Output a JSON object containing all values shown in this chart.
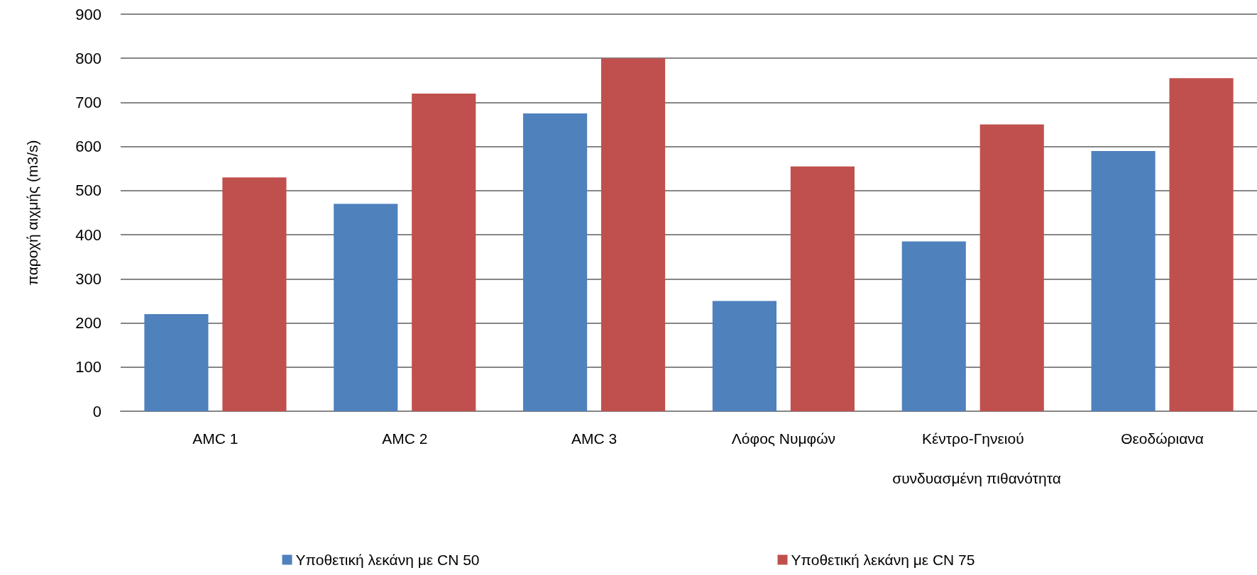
{
  "chart_data": {
    "type": "bar",
    "ylabel": "παροχή αιχμής (m3/s)",
    "categories": [
      "AMC 1",
      "AMC 2",
      "AMC 3",
      "Λόφος Νυμφών",
      "Κέντρο-Γηνειού",
      "Θεοδώριανα"
    ],
    "series": [
      {
        "name": "Υποθετική λεκάνη με CN 50",
        "color": "#4f81bd",
        "values": [
          220,
          470,
          675,
          250,
          385,
          590
        ]
      },
      {
        "name": "Υποθετική λεκάνη με CN 75",
        "color": "#c0504d",
        "values": [
          530,
          720,
          800,
          555,
          650,
          755
        ]
      }
    ],
    "ylim": [
      0,
      900
    ],
    "yticks": [
      0,
      100,
      200,
      300,
      400,
      500,
      600,
      700,
      800,
      900
    ],
    "grid": "y",
    "legend": "bottom",
    "annotations": [
      "συνδυασμένη πιθανότητα"
    ]
  }
}
